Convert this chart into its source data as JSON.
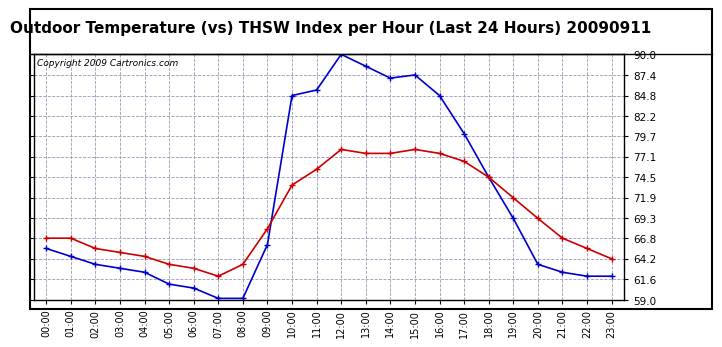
{
  "title": "Outdoor Temperature (vs) THSW Index per Hour (Last 24 Hours) 20090911",
  "copyright": "Copyright 2009 Cartronics.com",
  "hours": [
    "00:00",
    "01:00",
    "02:00",
    "03:00",
    "04:00",
    "05:00",
    "06:00",
    "07:00",
    "08:00",
    "09:00",
    "10:00",
    "11:00",
    "12:00",
    "13:00",
    "14:00",
    "15:00",
    "16:00",
    "17:00",
    "18:00",
    "19:00",
    "20:00",
    "21:00",
    "22:00",
    "23:00"
  ],
  "temp": [
    66.8,
    66.8,
    65.5,
    65.0,
    64.5,
    63.5,
    63.0,
    62.0,
    63.5,
    68.0,
    73.5,
    75.5,
    78.0,
    77.5,
    77.5,
    78.0,
    77.5,
    76.5,
    74.5,
    71.9,
    69.3,
    66.8,
    65.5,
    64.2
  ],
  "thsw": [
    65.5,
    64.5,
    63.5,
    63.0,
    62.5,
    61.0,
    60.5,
    59.2,
    59.2,
    66.0,
    84.8,
    85.5,
    90.0,
    88.5,
    87.0,
    87.4,
    84.8,
    80.0,
    74.5,
    69.3,
    63.5,
    62.5,
    62.0,
    62.0
  ],
  "temp_color": "#cc0000",
  "thsw_color": "#0000cc",
  "ylim_min": 59.0,
  "ylim_max": 90.0,
  "yticks": [
    59.0,
    61.6,
    64.2,
    66.8,
    69.3,
    71.9,
    74.5,
    77.1,
    79.7,
    82.2,
    84.8,
    87.4,
    90.0
  ],
  "background_color": "#ffffff",
  "plot_bg_color": "#ffffff",
  "grid_color": "#9999bb",
  "title_fontsize": 11,
  "copyright_fontsize": 6.5
}
